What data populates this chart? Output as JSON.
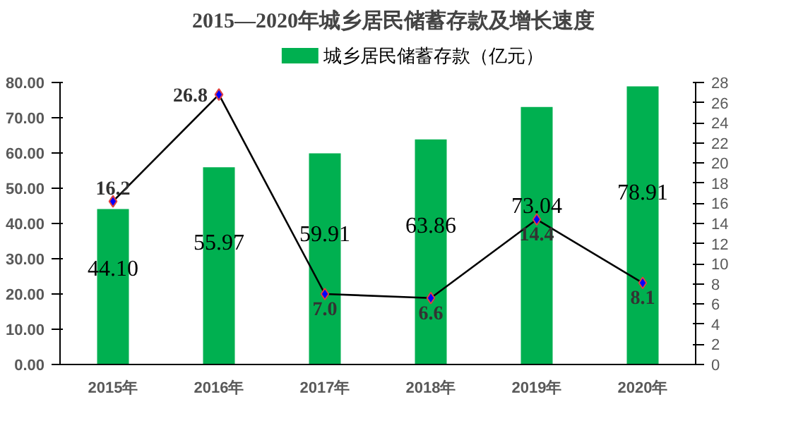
{
  "chart_data": {
    "type": "bar",
    "title": "2015—2020年城乡居民储蓄存款及增长速度",
    "categories": [
      "2015年",
      "2016年",
      "2017年",
      "2018年",
      "2019年",
      "2020年"
    ],
    "series": [
      {
        "name": "城乡居民储蓄存款（亿元）",
        "color": "#00b050",
        "values": [
          44.1,
          55.97,
          59.91,
          63.86,
          73.04,
          78.91
        ],
        "value_labels": [
          "44.10",
          "55.97",
          "59.91",
          "63.86",
          "73.04",
          "78.91"
        ]
      },
      {
        "type": "line",
        "axis": "y2",
        "color": "#000000",
        "values": [
          16.2,
          26.8,
          7.0,
          6.6,
          14.4,
          8.1
        ],
        "value_labels": [
          "16.2",
          "26.8",
          "7.0",
          "6.6",
          "14.4",
          "8.1"
        ]
      }
    ],
    "ylim": [
      0,
      80
    ],
    "yticks": [
      {
        "value": 0,
        "label": "0.00"
      },
      {
        "value": 10,
        "label": "10.00"
      },
      {
        "value": 20,
        "label": "20.00"
      },
      {
        "value": 30,
        "label": "30.00"
      },
      {
        "value": 40,
        "label": "40.00"
      },
      {
        "value": 50,
        "label": "50.00"
      },
      {
        "value": 60,
        "label": "60.00"
      },
      {
        "value": 70,
        "label": "70.00"
      },
      {
        "value": 80,
        "label": "80.00"
      }
    ],
    "y2lim": [
      0,
      28
    ],
    "y2ticks": [
      0,
      2,
      4,
      6,
      8,
      10,
      12,
      14,
      16,
      18,
      20,
      22,
      24,
      26,
      28
    ],
    "marker": "diamond",
    "legend": "top",
    "grid": false
  }
}
